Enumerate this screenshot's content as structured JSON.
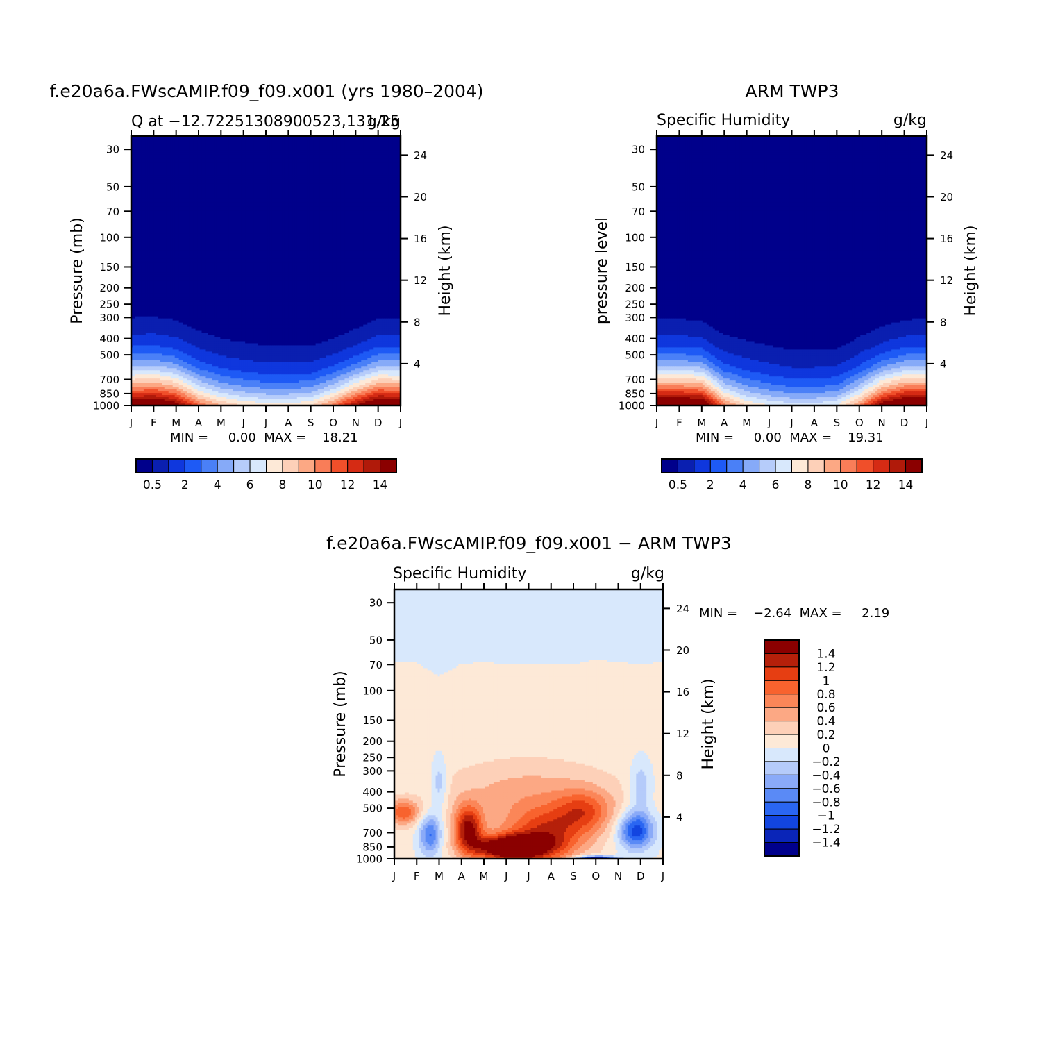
{
  "colors": {
    "abs_palette": [
      "#00008b",
      "#0a1fb0",
      "#0f37dd",
      "#1e5af5",
      "#4a80f7",
      "#86aaf8",
      "#b6ccfa",
      "#d8e8fc",
      "#fde9d7",
      "#fdd0b8",
      "#fca884",
      "#f97d58",
      "#f04f2a",
      "#d52b14",
      "#b01a0a",
      "#8b0000"
    ],
    "diff_palette": [
      "#00008b",
      "#0a25b8",
      "#1245e0",
      "#2a66f2",
      "#5a8af6",
      "#8aaaf8",
      "#b5cbfa",
      "#d8e8fc",
      "#fde9d7",
      "#fdd0b8",
      "#fca884",
      "#fb8658",
      "#f8632e",
      "#e63e12",
      "#b5200a",
      "#8b0000"
    ]
  },
  "chart_data": [
    {
      "id": "model",
      "type": "heatmap",
      "title": "f.e20a6a.FWscAMIP.f09_f09.x001 (yrs 1980-2004)",
      "subtitle_left": "Q at -12.72251308900523,131.25",
      "units": "g/kg",
      "ylabel": "Pressure (mb)",
      "ylabel_right": "Height (km)",
      "x_ticks": [
        "J",
        "F",
        "M",
        "A",
        "M",
        "J",
        "J",
        "A",
        "S",
        "O",
        "N",
        "D",
        "J"
      ],
      "y_ticks": [
        30,
        50,
        70,
        100,
        150,
        200,
        250,
        300,
        400,
        500,
        700,
        850,
        1000
      ],
      "y_ticks_right": [
        24,
        20,
        16,
        12,
        8,
        4
      ],
      "ylim": [
        1000,
        25
      ],
      "stats": "MIN =     0.00  MAX =    18.21",
      "colorbar_levels": [
        0.5,
        1,
        2,
        3,
        4,
        5,
        6,
        7,
        8,
        9,
        10,
        11,
        12,
        13,
        14
      ],
      "colorbar_labels": [
        "0.5",
        "2",
        "4",
        "6",
        "8",
        "10",
        "12",
        "14"
      ],
      "surface_q": [
        16.0,
        16.5,
        15.0,
        11.0,
        9.0,
        8.0,
        7.5,
        7.5,
        8.0,
        10.5,
        14.0,
        16.5,
        16.0
      ],
      "moist_top_mb": [
        300,
        296,
        310,
        360,
        400,
        420,
        440,
        440,
        440,
        400,
        350,
        305,
        300
      ]
    },
    {
      "id": "obs",
      "type": "heatmap",
      "title": "ARM TWP3",
      "subtitle_left": "Specific Humidity",
      "units": "g/kg",
      "ylabel": "pressure level",
      "ylabel_right": "Height (km)",
      "x_ticks": [
        "J",
        "F",
        "M",
        "A",
        "M",
        "J",
        "J",
        "A",
        "S",
        "O",
        "N",
        "D",
        "J"
      ],
      "y_ticks": [
        30,
        50,
        70,
        100,
        150,
        200,
        250,
        300,
        400,
        500,
        700,
        850,
        1000
      ],
      "y_ticks_right": [
        24,
        20,
        16,
        12,
        8,
        4
      ],
      "ylim": [
        1000,
        25
      ],
      "stats": "MIN =     0.00  MAX =    19.31",
      "colorbar_levels": [
        0.5,
        1,
        2,
        3,
        4,
        5,
        6,
        7,
        8,
        9,
        10,
        11,
        12,
        13,
        14
      ],
      "colorbar_labels": [
        "0.5",
        "2",
        "4",
        "6",
        "8",
        "10",
        "12",
        "14"
      ],
      "surface_q": [
        17.0,
        17.0,
        16.5,
        10.5,
        8.0,
        7.0,
        6.5,
        6.5,
        7.0,
        10.0,
        15.0,
        17.0,
        17.0
      ],
      "moist_top_mb": [
        305,
        305,
        315,
        380,
        410,
        440,
        470,
        470,
        460,
        390,
        340,
        310,
        305
      ]
    },
    {
      "id": "diff",
      "type": "heatmap",
      "title": "f.e20a6a.FWscAMIP.f09_f09.x001 - ARM TWP3",
      "subtitle_left": "Specific Humidity",
      "units": "g/kg",
      "ylabel": "Pressure (mb)",
      "ylabel_right": "Height (km)",
      "x_ticks": [
        "J",
        "F",
        "M",
        "A",
        "M",
        "J",
        "J",
        "A",
        "S",
        "O",
        "N",
        "D",
        "J"
      ],
      "y_ticks": [
        30,
        50,
        70,
        100,
        150,
        200,
        250,
        300,
        400,
        500,
        700,
        850,
        1000
      ],
      "y_ticks_right": [
        24,
        20,
        16,
        12,
        8,
        4
      ],
      "ylim": [
        1000,
        25
      ],
      "stats": "MIN =    -2.64  MAX =     2.19",
      "colorbar_levels": [
        -1.4,
        -1.2,
        -1,
        -0.8,
        -0.6,
        -0.4,
        -0.2,
        0,
        0.2,
        0.4,
        0.6,
        0.8,
        1,
        1.2,
        1.4
      ],
      "colorbar_labels": [
        "1.4",
        "1.2",
        "1",
        "0.8",
        "0.6",
        "0.4",
        "0.2",
        "0",
        "-0.2",
        "-0.4",
        "-0.6",
        "-0.8",
        "-1",
        "-1.2",
        "-1.4"
      ],
      "upper_boundary_mb": [
        68,
        68,
        82,
        69,
        68,
        69,
        69,
        70,
        70,
        65,
        68,
        69,
        68
      ]
    }
  ]
}
